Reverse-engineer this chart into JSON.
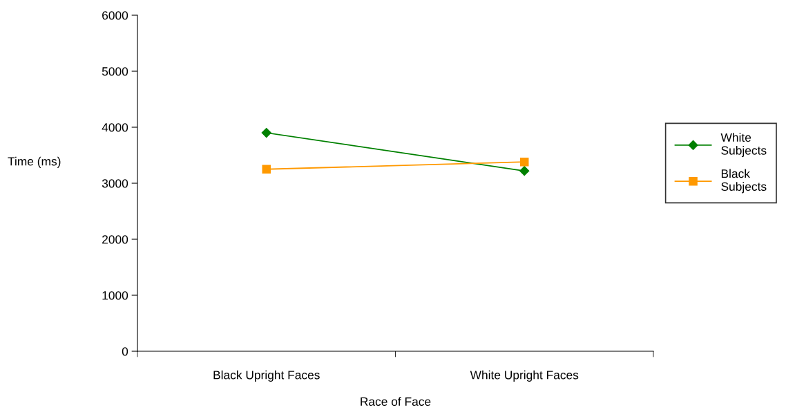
{
  "chart_data": {
    "type": "line",
    "xlabel": "Race of Face",
    "ylabel": "Time (ms)",
    "categories": [
      "Black Upright Faces",
      "White Upright Faces"
    ],
    "series": [
      {
        "name": "White Subjects",
        "color": "#008000",
        "marker": "diamond",
        "values": [
          3900,
          3220
        ]
      },
      {
        "name": "Black Subjects",
        "color": "#ff9900",
        "marker": "square",
        "values": [
          3250,
          3380
        ]
      }
    ],
    "ylim": [
      0,
      6000
    ],
    "yticks": [
      0,
      1000,
      2000,
      3000,
      4000,
      5000,
      6000
    ],
    "grid": false,
    "legend": "right",
    "line_style": "solid"
  }
}
